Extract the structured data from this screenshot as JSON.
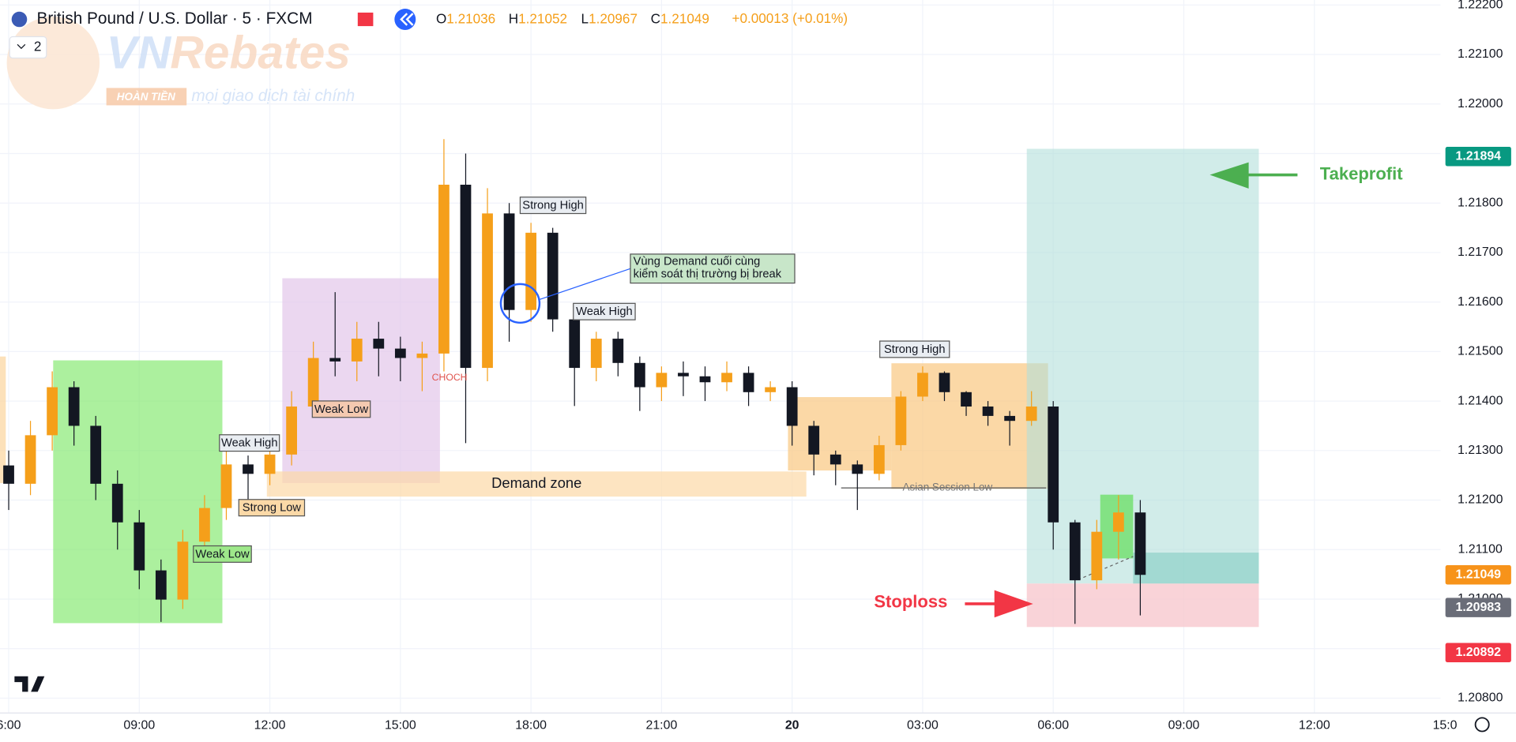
{
  "header": {
    "symbol": "British Pound / U.S. Dollar · 5 · FXCM",
    "indicators_toggle": "2",
    "ohlc": [
      {
        "key": "O",
        "value": "1.21036"
      },
      {
        "key": "H",
        "value": "1.21052"
      },
      {
        "key": "L",
        "value": "1.20967"
      },
      {
        "key": "C",
        "value": "1.21049"
      }
    ],
    "change": "+0.00013 (+0.01%)"
  },
  "watermark": {
    "brand_a": "VN",
    "brand_b": "Rebates",
    "badge": "HOÀN TIỀN",
    "tagline": "mọi giao dịch tài chính"
  },
  "chart_data": {
    "type": "candlestick",
    "x": [
      0,
      0.5,
      1,
      1.5,
      2,
      2.5,
      3,
      3.5,
      4,
      4.5,
      5,
      5.5,
      6,
      6.5,
      7,
      7.5,
      8,
      8.5,
      9,
      9.5,
      10,
      10.5,
      11,
      11.5,
      12,
      12.5,
      13,
      13.5,
      14,
      14.5,
      15,
      15.5,
      16,
      16.5,
      17,
      17.5,
      18,
      18.5,
      19,
      19.5,
      20,
      20.5,
      21,
      21.5,
      22,
      22.5,
      23,
      23.5,
      24,
      24.5,
      25,
      25.5,
      26
    ],
    "open": [
      1.2127,
      1.21233,
      1.21331,
      1.21428,
      1.2135,
      1.21233,
      1.21155,
      1.21058,
      1.20999,
      1.21116,
      1.21184,
      1.21272,
      1.21253,
      1.21292,
      1.21389,
      1.21487,
      1.2148,
      1.21526,
      1.21506,
      1.21487,
      1.21496,
      1.21837,
      1.21467,
      1.21779,
      1.21584,
      1.2174,
      1.21565,
      1.21467,
      1.21526,
      1.21477,
      1.21428,
      1.21457,
      1.2145,
      1.21438,
      1.21457,
      1.21418,
      1.21428,
      1.2135,
      1.21292,
      1.21272,
      1.21253,
      1.21311,
      1.21409,
      1.21457,
      1.21418,
      1.21389,
      1.2137,
      1.2136,
      1.21389,
      1.21155,
      1.21038,
      1.21136,
      1.21175
    ],
    "high": [
      1.213,
      1.2136,
      1.2146,
      1.2144,
      1.2137,
      1.2126,
      1.2118,
      1.2108,
      1.2114,
      1.2121,
      1.213,
      1.2129,
      1.2132,
      1.2142,
      1.2152,
      1.2162,
      1.2156,
      1.2156,
      1.2153,
      1.2152,
      1.21929,
      1.219,
      1.2183,
      1.218,
      1.2176,
      1.2175,
      1.2158,
      1.2154,
      1.2154,
      1.2149,
      1.2147,
      1.2148,
      1.2147,
      1.2148,
      1.2147,
      1.2144,
      1.2144,
      1.2136,
      1.213,
      1.2128,
      1.2133,
      1.2142,
      1.2147,
      1.2146,
      1.2142,
      1.214,
      1.2138,
      1.2142,
      1.214,
      1.2116,
      1.2116,
      1.2121,
      1.212
    ],
    "low": [
      1.2118,
      1.2121,
      1.213,
      1.2131,
      1.212,
      1.211,
      1.2102,
      1.20954,
      1.2098,
      1.2109,
      1.2116,
      1.2118,
      1.2123,
      1.2127,
      1.2137,
      1.2145,
      1.2144,
      1.2145,
      1.2144,
      1.2142,
      1.2146,
      1.21315,
      1.2144,
      1.2152,
      1.2156,
      1.2154,
      1.2139,
      1.2144,
      1.2145,
      1.2138,
      1.214,
      1.2141,
      1.214,
      1.2142,
      1.2139,
      1.214,
      1.2131,
      1.2125,
      1.2123,
      1.2118,
      1.2124,
      1.213,
      1.214,
      1.214,
      1.2137,
      1.2135,
      1.2131,
      1.2135,
      1.211,
      1.2095,
      1.2102,
      1.2108,
      1.20967
    ],
    "close": [
      1.21233,
      1.21331,
      1.21428,
      1.2135,
      1.21233,
      1.21155,
      1.21058,
      1.20999,
      1.21116,
      1.21184,
      1.21272,
      1.21253,
      1.21292,
      1.21389,
      1.21487,
      1.2148,
      1.21526,
      1.21506,
      1.21487,
      1.21496,
      1.21837,
      1.21467,
      1.21779,
      1.21584,
      1.2174,
      1.21565,
      1.21467,
      1.21526,
      1.21477,
      1.21428,
      1.21457,
      1.2145,
      1.21438,
      1.21457,
      1.21418,
      1.21428,
      1.2135,
      1.21292,
      1.21272,
      1.21253,
      1.21311,
      1.21409,
      1.21457,
      1.21418,
      1.21389,
      1.2137,
      1.2136,
      1.21389,
      1.21155,
      1.21038,
      1.21136,
      1.21175,
      1.21049
    ],
    "up_color": "#f59f1a",
    "down_color": "#131722",
    "xlim": [
      -0.2,
      32.9
    ],
    "ylim": [
      1.2077,
      1.2221
    ],
    "xticks": [
      {
        "value": 0,
        "label": "6:00"
      },
      {
        "value": 3,
        "label": "09:00"
      },
      {
        "value": 6,
        "label": "12:00"
      },
      {
        "value": 9,
        "label": "15:00"
      },
      {
        "value": 12,
        "label": "18:00"
      },
      {
        "value": 15,
        "label": "21:00"
      },
      {
        "value": 18,
        "label": "20"
      },
      {
        "value": 21,
        "label": "03:00"
      },
      {
        "value": 24,
        "label": "06:00"
      },
      {
        "value": 27,
        "label": "09:00"
      },
      {
        "value": 30,
        "label": "12:00"
      },
      {
        "value": 33,
        "label": "15:0"
      }
    ],
    "yticks": [
      {
        "value": 1.208,
        "label": "1.20800"
      },
      {
        "value": 1.209,
        "label": "1.20900"
      },
      {
        "value": 1.21,
        "label": "1.21000"
      },
      {
        "value": 1.211,
        "label": "1.21100"
      },
      {
        "value": 1.212,
        "label": "1.21200"
      },
      {
        "value": 1.213,
        "label": "1.21300"
      },
      {
        "value": 1.214,
        "label": "1.21400"
      },
      {
        "value": 1.215,
        "label": "1.21500"
      },
      {
        "value": 1.216,
        "label": "1.21600"
      },
      {
        "value": 1.217,
        "label": "1.21700"
      },
      {
        "value": 1.218,
        "label": "1.21800"
      },
      {
        "value": 1.219,
        "label": "1.21900"
      },
      {
        "value": 1.22,
        "label": "1.22000"
      },
      {
        "value": 1.221,
        "label": "1.22100"
      },
      {
        "value": 1.222,
        "label": "1.22200"
      }
    ],
    "grid": true,
    "price_labels": [
      {
        "value": 1.21894,
        "label": "1.21894",
        "color": "#089981"
      },
      {
        "value": 1.21049,
        "label": "1.21049",
        "color": "#f7931a"
      },
      {
        "value": 1.20983,
        "label": "1.20983",
        "color": "#6a6d78"
      },
      {
        "value": 1.20892,
        "label": "1.20892",
        "color": "#f23645"
      }
    ],
    "annotations": [
      "Strong High",
      "Vùng Demand cuối cùng",
      "kiểm soát thị trường bị break",
      "Weak High",
      "Strong High",
      "Weak Low",
      "Weak High",
      "Strong Low",
      "Weak Low",
      "CHOCH",
      "Demand zone",
      "Asian Session Low",
      "Takeprofit",
      "Stoploss"
    ]
  }
}
